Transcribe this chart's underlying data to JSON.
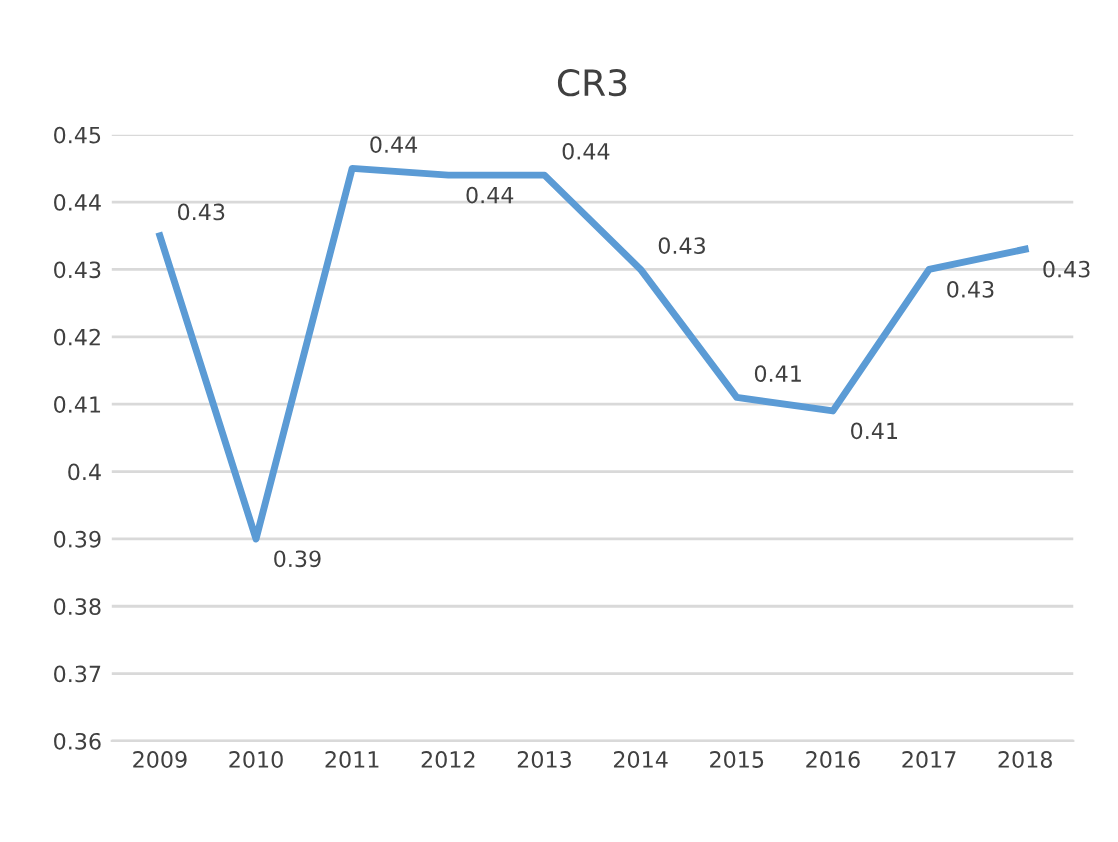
{
  "chart_data": {
    "type": "line",
    "title": "CR3",
    "categories": [
      "2009",
      "2010",
      "2011",
      "2012",
      "2013",
      "2014",
      "2015",
      "2016",
      "2017",
      "2018"
    ],
    "series": [
      {
        "color": "#5b9bd5",
        "values": [
          0.435,
          0.39,
          0.445,
          0.444,
          0.444,
          0.43,
          0.411,
          0.409,
          0.43,
          0.433
        ],
        "value_labels": [
          "0.43",
          "0.39",
          "0.44",
          "0.44",
          "0.44",
          "0.43",
          "0.41",
          "0.41",
          "0.43",
          "0.43"
        ]
      }
    ],
    "ylim": [
      0.36,
      0.45
    ],
    "yticks": [
      0.36,
      0.37,
      0.38,
      0.39,
      0.4,
      0.41,
      0.42,
      0.43,
      0.44,
      0.45
    ],
    "grid": "y",
    "marker": "none",
    "line_style": "solid"
  }
}
